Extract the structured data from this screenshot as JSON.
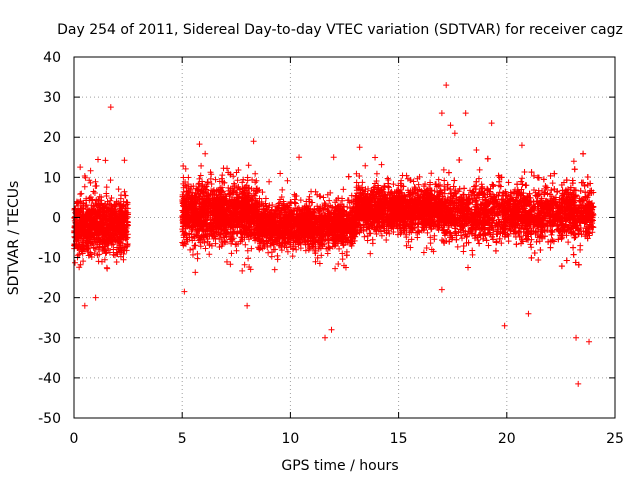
{
  "chart_data": {
    "type": "scatter",
    "title": "Day 254 of 2011, Sidereal Day-to-day VTEC variation (SDTVAR) for receiver cagz",
    "xlabel": "GPS time / hours",
    "ylabel": "SDTVAR / TECUs",
    "xlim": [
      0,
      25
    ],
    "ylim": [
      -50,
      40
    ],
    "xticks": [
      0,
      5,
      10,
      15,
      20,
      25
    ],
    "yticks": [
      40,
      30,
      20,
      10,
      0,
      -10,
      -20,
      -30,
      -40,
      -50
    ],
    "xtick_labels": [
      "0",
      "5",
      "10",
      "15",
      "20",
      "25"
    ],
    "ytick_labels": [
      "40",
      "30",
      "20",
      "10",
      "0",
      "-10",
      "-20",
      "-30",
      "-40",
      "-50"
    ],
    "grid": true,
    "marker": "+",
    "color": "#ff0000",
    "series": [
      {
        "name": "SDTVAR",
        "dense_segments": [
          {
            "x_start": 0.0,
            "x_end": 2.5,
            "center": -2,
            "spread": 6
          },
          {
            "x_start": 5.0,
            "x_end": 8.5,
            "center": 1,
            "spread": 6
          },
          {
            "x_start": 8.5,
            "x_end": 13.0,
            "center": -2,
            "spread": 4.5
          },
          {
            "x_start": 13.0,
            "x_end": 17.0,
            "center": 2,
            "spread": 4.5
          },
          {
            "x_start": 17.0,
            "x_end": 24.0,
            "center": 1,
            "spread": 5.5
          }
        ],
        "outliers": [
          {
            "x": 0.5,
            "y": -22
          },
          {
            "x": 1.0,
            "y": -20
          },
          {
            "x": 1.7,
            "y": 27.5
          },
          {
            "x": 5.1,
            "y": -18.5
          },
          {
            "x": 8.0,
            "y": -22
          },
          {
            "x": 8.3,
            "y": 19
          },
          {
            "x": 10.4,
            "y": 15
          },
          {
            "x": 11.6,
            "y": -30
          },
          {
            "x": 11.9,
            "y": -28
          },
          {
            "x": 12.0,
            "y": 15
          },
          {
            "x": 13.2,
            "y": 17.5
          },
          {
            "x": 17.2,
            "y": 33
          },
          {
            "x": 17.0,
            "y": 26
          },
          {
            "x": 17.4,
            "y": 23
          },
          {
            "x": 17.6,
            "y": 21
          },
          {
            "x": 18.1,
            "y": 26
          },
          {
            "x": 19.3,
            "y": 23.5
          },
          {
            "x": 19.9,
            "y": -27
          },
          {
            "x": 20.7,
            "y": 18
          },
          {
            "x": 21.0,
            "y": -24
          },
          {
            "x": 23.2,
            "y": -30
          },
          {
            "x": 23.3,
            "y": -41.5
          },
          {
            "x": 23.8,
            "y": -31
          },
          {
            "x": 23.1,
            "y": 14
          },
          {
            "x": 17.0,
            "y": -18
          }
        ]
      }
    ]
  }
}
